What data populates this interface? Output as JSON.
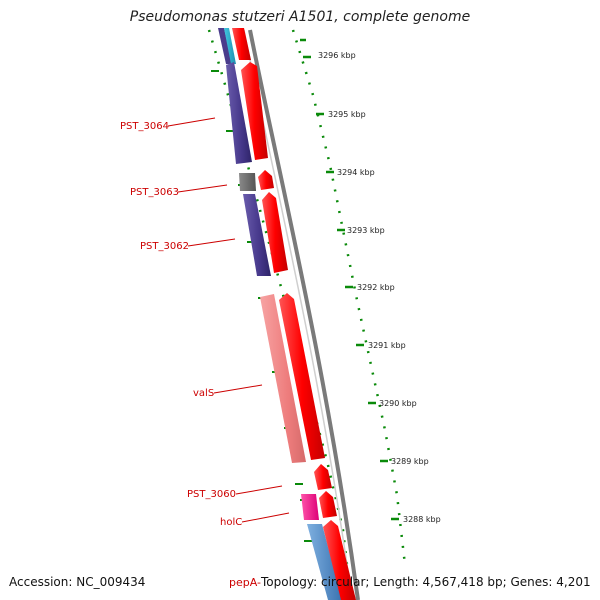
{
  "title": "Pseudomonas stutzeri A1501, complete genome",
  "footer": {
    "accession": "Accession: NC_009434",
    "gene": "pepA-",
    "topology": "Topology: circular; Length: 4,567,418 bp; Genes: 4,201"
  },
  "scale_labels": [
    "3296 kbp",
    "3295 kbp",
    "3294 kbp",
    "3293 kbp",
    "3292 kbp",
    "3291 kbp",
    "3290 kbp",
    "3289 kbp",
    "3288 kbp"
  ],
  "gene_labels": [
    "PST_3064",
    "PST_3063",
    "PST_3062",
    "valS",
    "PST_3060",
    "holC"
  ],
  "colors": {
    "cds_forward": "#ff0000",
    "cds_reverse_dark": "#4a3c8c",
    "cds_reverse_gray": "#6b6b6b",
    "trna_pink": "#f08080",
    "pink_magenta": "#ee1188",
    "blue_cds": "#4a86c8",
    "backbone": "#808080",
    "tick_green": "#008000",
    "label_red": "#cc0000"
  }
}
